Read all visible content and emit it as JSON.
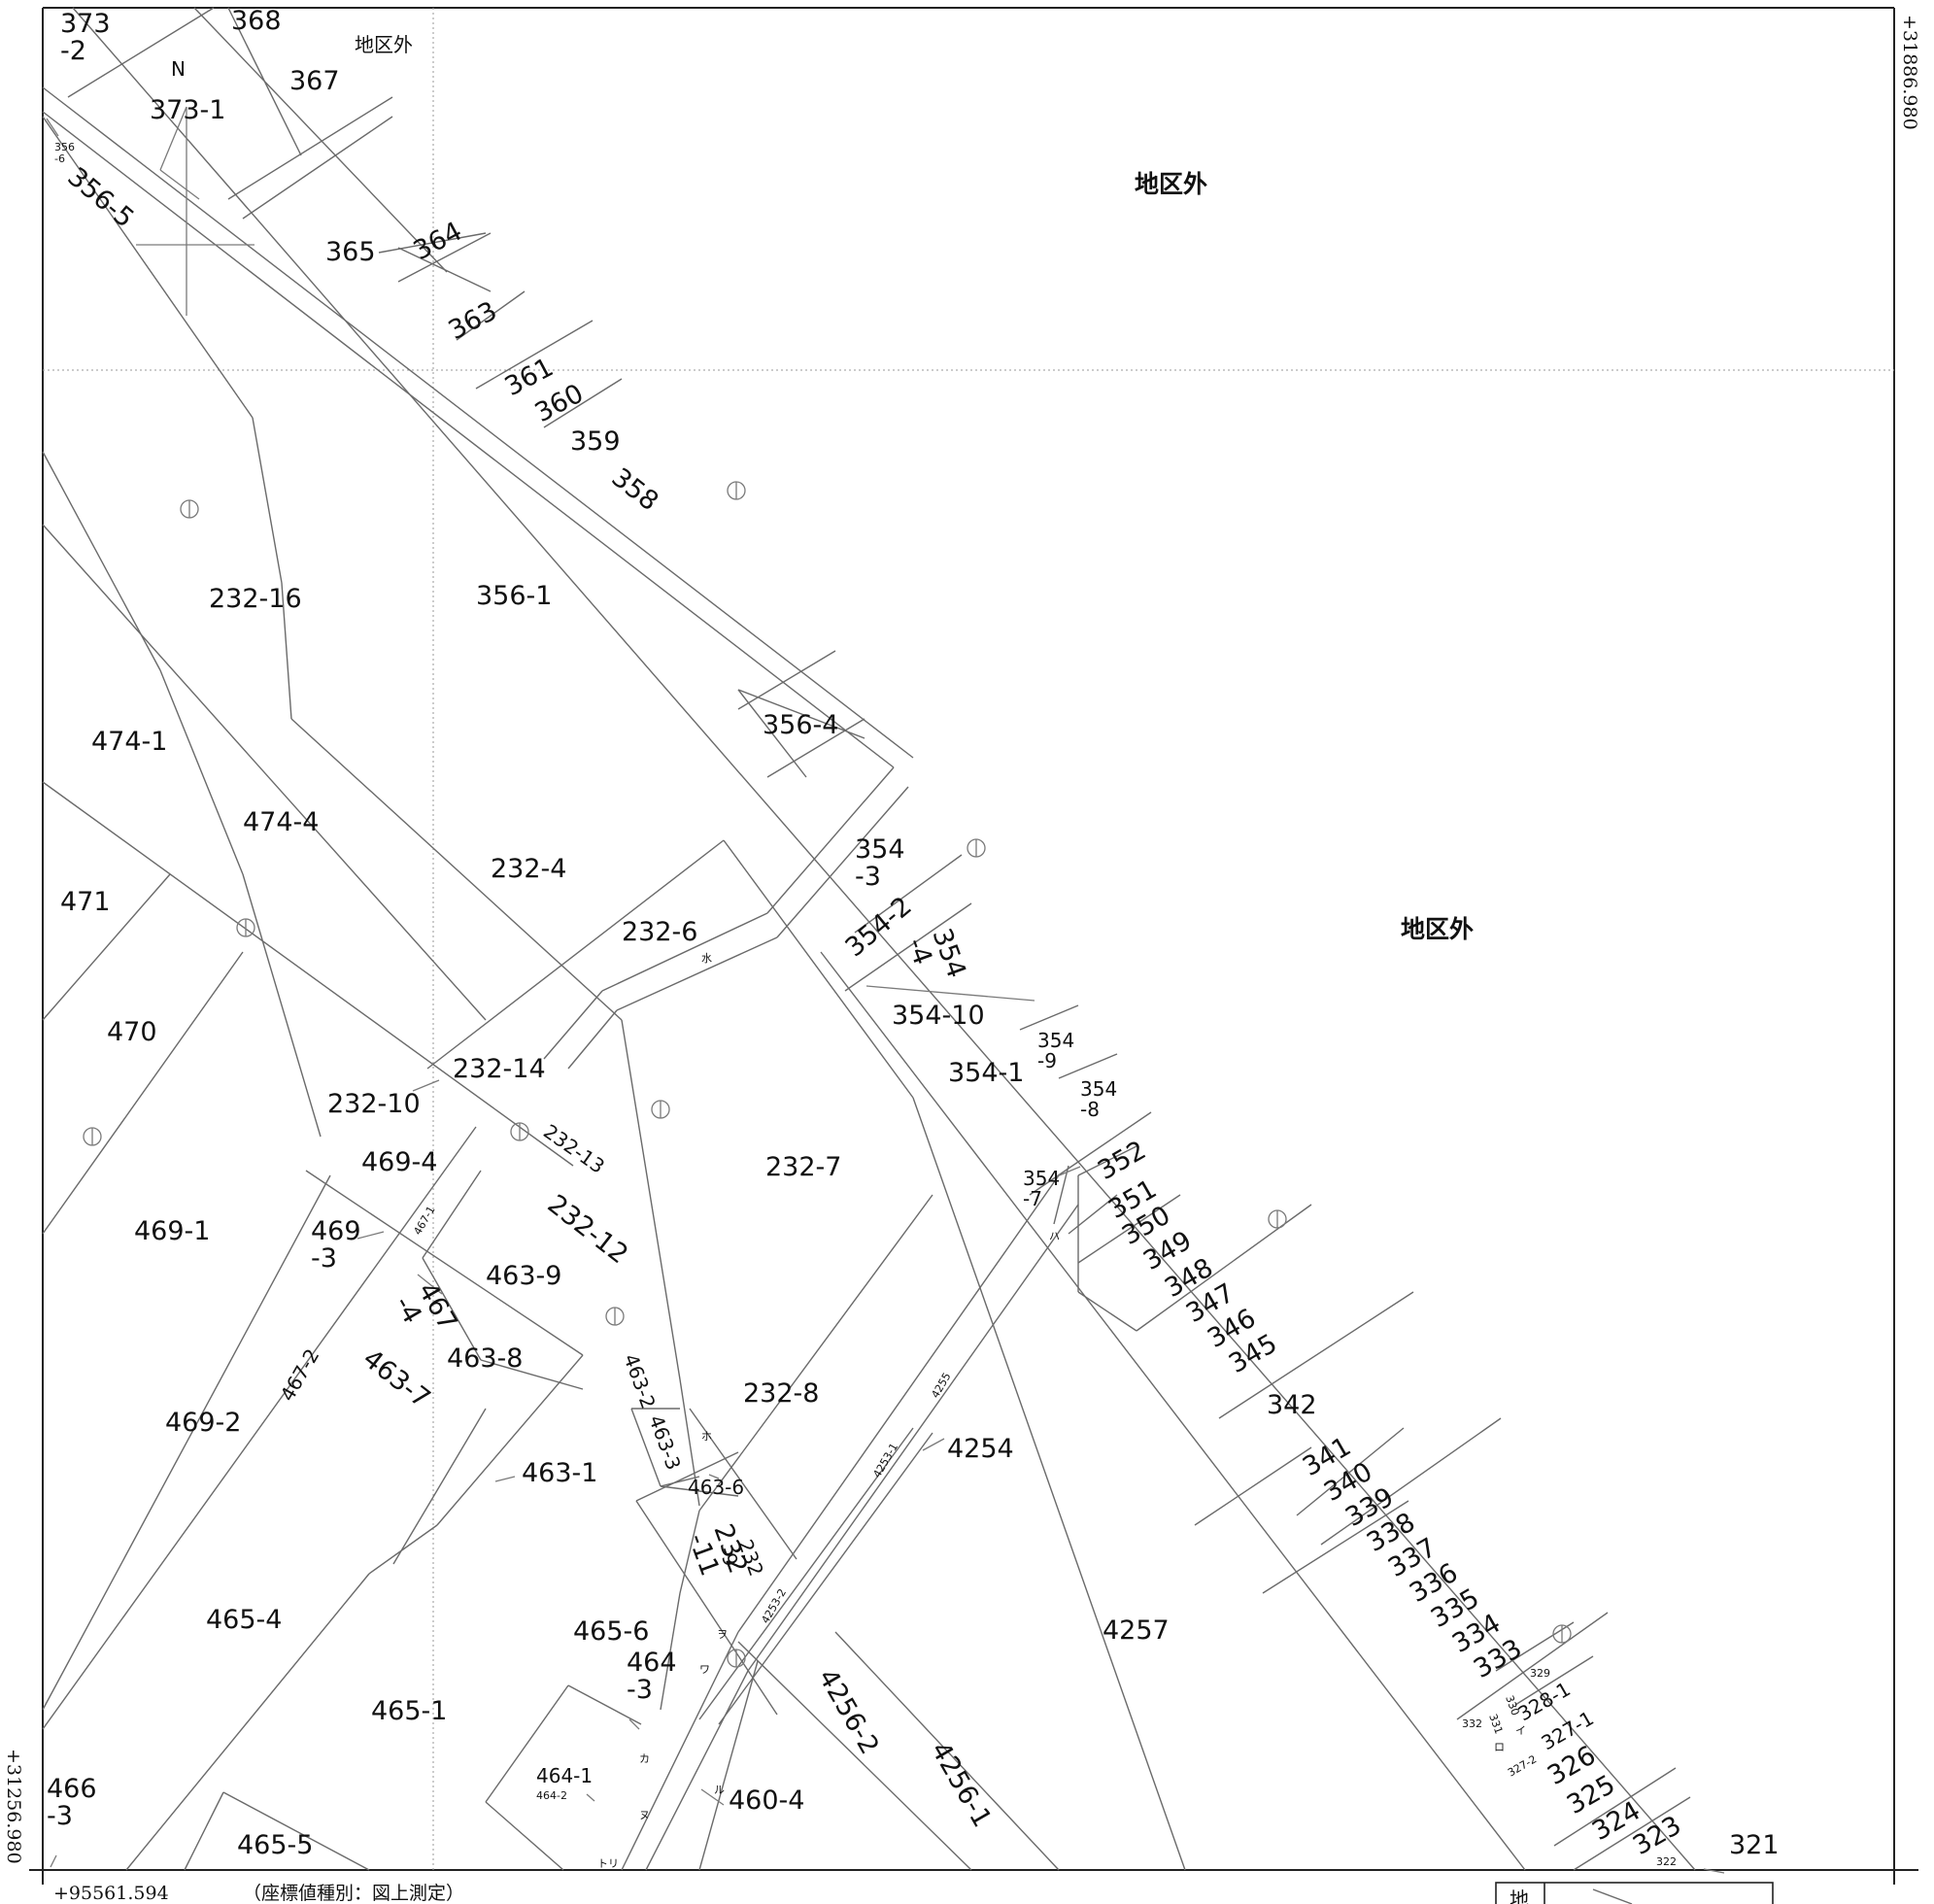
{
  "coordinates": {
    "top_right": "+31886.980",
    "bottom_left_y": "+31256.980",
    "bottom_left_x": "+95561.594",
    "note": "（座標値種別：図上測定）"
  },
  "north_label": "N",
  "outside_area": [
    "地区外",
    "地区外",
    "地区外"
  ],
  "waterway_marks": [
    "水",
    "ハ",
    "ホ",
    "ヲ",
    "ワ",
    "カ",
    "ル",
    "ヌ",
    "ロ",
    "イ",
    "トリ"
  ],
  "legend_char": "地",
  "parcels": [
    "373\n-2",
    "368",
    "367",
    "373-1",
    "356\n-6",
    "356-5",
    "365",
    "364",
    "363",
    "361",
    "360",
    "359",
    "358",
    "232-16",
    "356-1",
    "356-4",
    "474-1",
    "474-4",
    "471",
    "232-4",
    "232-6",
    "354\n-3",
    "354-2",
    "354\n-4",
    "354-10",
    "470",
    "232-14",
    "354\n-9",
    "354-1",
    "354\n-8",
    "232-10",
    "232-13",
    "232-7",
    "469-4",
    "352",
    "354\n-7",
    "351",
    "469-1",
    "469\n-3",
    "467-1",
    "232-12",
    "350",
    "349",
    "348",
    "463-9",
    "467\n-4",
    "347",
    "346",
    "345",
    "463-8",
    "463-7",
    "463-2",
    "467-2",
    "469-2",
    "232-8",
    "342",
    "4255",
    "463-3",
    "4254",
    "341",
    "340",
    "339",
    "463-1",
    "4253-1",
    "463-6",
    "338",
    "337",
    "232\n-11",
    "232\n-9",
    "336",
    "335",
    "465-4",
    "4253-2",
    "4257",
    "334",
    "465-6",
    "333",
    "329",
    "464\n-3",
    "330",
    "331",
    "332",
    "328-1",
    "465-1",
    "327-1",
    "4256-2",
    "327-2",
    "326",
    "464-1",
    "464-2",
    "325",
    "466\n-3",
    "460-4",
    "4256-1",
    "324",
    "323",
    "465-5",
    "322",
    "321"
  ]
}
